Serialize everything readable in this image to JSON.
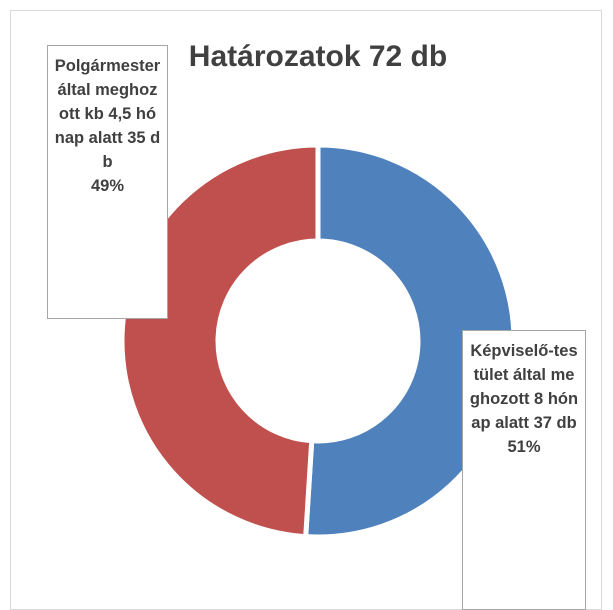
{
  "chart_data": {
    "type": "donut",
    "title": "Határozatok 72 db",
    "categories": [
      "Képviselő-testület által meghozott 8 hónap alatt 37 db",
      "Polgármester által meghozott kb 4,5 hónap alatt 35 db"
    ],
    "values": [
      51,
      49
    ],
    "value_labels": [
      "51%",
      "49%"
    ],
    "colors": [
      "#4f81bd",
      "#c0504d"
    ]
  }
}
